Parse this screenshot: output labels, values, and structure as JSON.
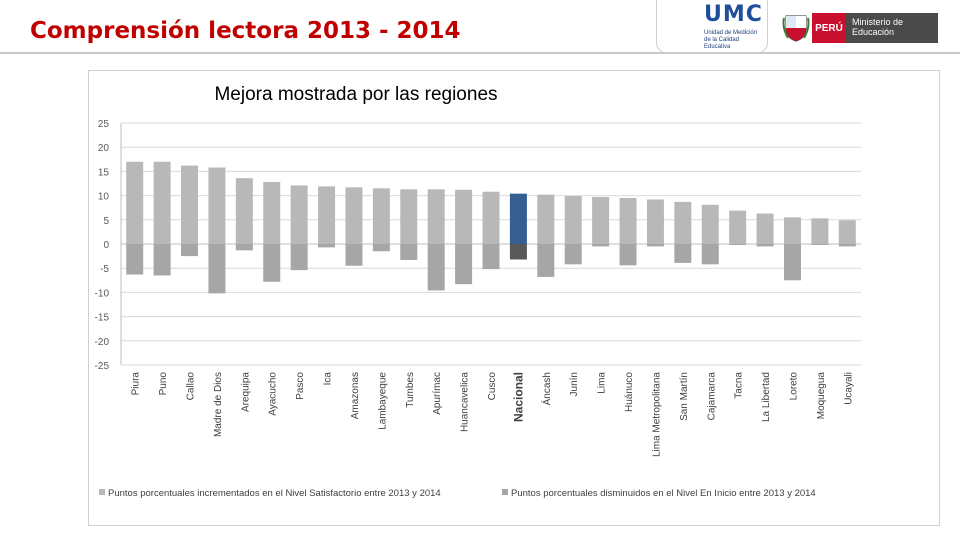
{
  "header": {
    "title": "Comprensión lectora 2013 - 2014",
    "umc_logo": "UMC",
    "umc_subtitle": "Unidad de Medición de la Calidad Educativa",
    "peru_label": "PERÚ",
    "ministry_label": "Ministerio de Educación"
  },
  "colors": {
    "title": "#c00000",
    "positive": "#b8b8b8",
    "negative": "#a6a6a6",
    "national_positive": "#365f91",
    "national_negative": "#595959",
    "grid": "#d9d9d9"
  },
  "chart_data": {
    "type": "bar",
    "title": "Mejora mostrada por las regiones",
    "categories": [
      "Piura",
      "Puno",
      "Callao",
      "Madre de Dios",
      "Arequipa",
      "Ayacucho",
      "Pasco",
      "Ica",
      "Amazonas",
      "Lambayeque",
      "Tumbes",
      "Apurímac",
      "Huancavelica",
      "Cusco",
      "Nacional",
      "Áncash",
      "Junín",
      "Lima",
      "Huánuco",
      "Lima Metropolitana",
      "San Martín",
      "Cajamarca",
      "Tacna",
      "La Libertad",
      "Loreto",
      "Moquegua",
      "Ucayali"
    ],
    "highlight_category": "Nacional",
    "series": [
      {
        "name": "Puntos porcentuales incrementados en el Nivel Satisfactorio entre 2013 y 2014",
        "values": [
          17.0,
          17.0,
          16.2,
          15.8,
          13.6,
          12.8,
          12.1,
          11.9,
          11.7,
          11.5,
          11.3,
          11.3,
          11.2,
          10.8,
          10.4,
          10.2,
          9.9,
          9.7,
          9.5,
          9.2,
          8.7,
          8.1,
          6.9,
          6.3,
          5.5,
          5.3,
          4.9
        ]
      },
      {
        "name": "Puntos porcentuales disminuidos en el Nivel En Inicio entre 2013 y 2014",
        "values": [
          -6.3,
          -6.5,
          -2.5,
          -10.2,
          -1.3,
          -7.8,
          -5.4,
          -0.7,
          -4.5,
          -1.5,
          -3.3,
          -9.6,
          -8.3,
          -5.2,
          -3.2,
          -6.8,
          -4.2,
          -0.5,
          -4.4,
          -0.5,
          -3.9,
          -4.2,
          -0.2,
          -0.5,
          -7.5,
          -0.2,
          -0.5
        ]
      }
    ],
    "yticks": [
      "25",
      "20",
      "15",
      "10",
      "5",
      "0",
      "-5",
      "-10",
      "-15",
      "-20",
      "-25"
    ],
    "ylim": [
      -25,
      25
    ],
    "legend_position": "bottom"
  }
}
